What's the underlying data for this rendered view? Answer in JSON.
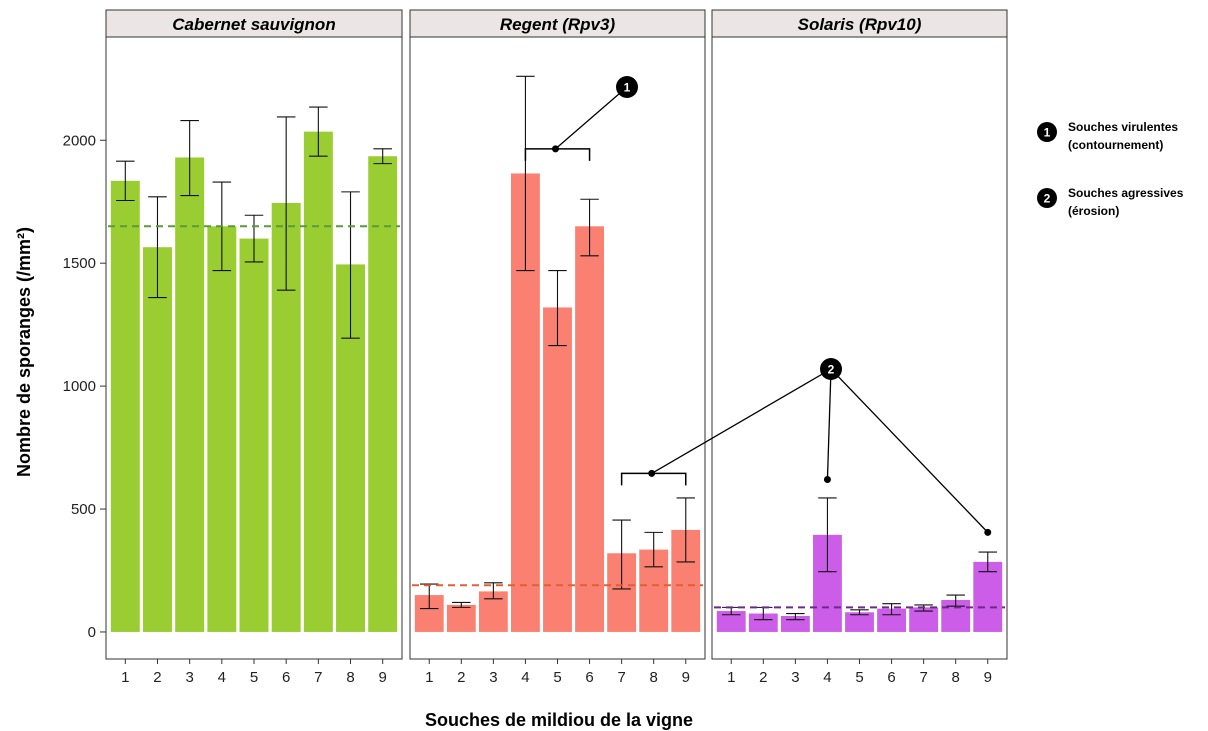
{
  "chart_data": {
    "type": "bar",
    "ylabel": "Nombre de sporanges (/mm²)",
    "xlabel": "Souches de mildiou de la vigne",
    "ylim": [
      -110,
      2420
    ],
    "yticks": [
      0,
      500,
      1000,
      1500,
      2000
    ],
    "categories": [
      "1",
      "2",
      "3",
      "4",
      "5",
      "6",
      "7",
      "8",
      "9"
    ],
    "panels": [
      {
        "name": "Cabernet sauvignon",
        "color": "#9acd32",
        "reference_line": 1650,
        "reference_color": "#5a9a3a",
        "values": [
          1835,
          1565,
          1930,
          1650,
          1600,
          1745,
          2035,
          1495,
          1935
        ],
        "error_low": [
          1755,
          1360,
          1775,
          1470,
          1505,
          1390,
          1935,
          1195,
          1905
        ],
        "error_high": [
          1915,
          1770,
          2080,
          1830,
          1695,
          2095,
          2135,
          1790,
          1965
        ]
      },
      {
        "name": "Regent (Rpv3)",
        "color": "#fa8072",
        "reference_line": 190,
        "reference_color": "#e06030",
        "values": [
          150,
          110,
          165,
          1865,
          1320,
          1650,
          320,
          335,
          415
        ],
        "error_low": [
          95,
          100,
          135,
          1470,
          1165,
          1530,
          175,
          265,
          285
        ],
        "error_high": [
          195,
          120,
          200,
          2260,
          1470,
          1760,
          455,
          405,
          545
        ]
      },
      {
        "name": "Solaris (Rpv10)",
        "color": "#cc5de8",
        "reference_line": 100,
        "reference_color": "#6a2a8a",
        "values": [
          85,
          75,
          65,
          395,
          80,
          95,
          100,
          130,
          285
        ],
        "error_low": [
          70,
          50,
          50,
          245,
          70,
          70,
          85,
          105,
          245
        ],
        "error_high": [
          100,
          100,
          75,
          545,
          90,
          115,
          110,
          150,
          325
        ]
      }
    ],
    "annotations": [
      {
        "badge": "1",
        "label_line1": "Souches virulentes",
        "label_line2": "(contournement)"
      },
      {
        "badge": "2",
        "label_line1": "Souches agressives",
        "label_line2": "(érosion)"
      }
    ],
    "legend_position": "right",
    "grid": false
  }
}
